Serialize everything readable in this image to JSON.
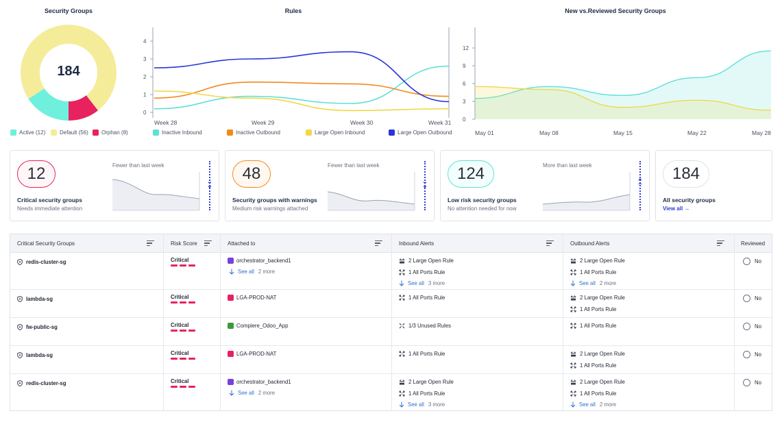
{
  "security_groups_chart": {
    "title": "Security Groups",
    "center_value": "184",
    "legend": [
      {
        "label": "Active (12)",
        "color": "#6ff0dc"
      },
      {
        "label": "Default (56)",
        "color": "#f5ec9a"
      },
      {
        "label": "Orphan (8)",
        "color": "#e8215f"
      }
    ]
  },
  "rules_chart": {
    "title": "Rules"
  },
  "reviewed_chart": {
    "title": "New vs.Reviewed Security Groups"
  },
  "chart_data": [
    {
      "type": "pie",
      "title": "Security Groups",
      "categories": [
        "Active",
        "Default",
        "Orphan"
      ],
      "values": [
        12,
        56,
        8
      ],
      "colors": [
        "#6ff0dc",
        "#f5ec9a",
        "#e8215f"
      ],
      "donut": true,
      "center_label": "184"
    },
    {
      "type": "line",
      "title": "Rules",
      "x": [
        "Week 28",
        "Week 29",
        "Week 30",
        "Week 31"
      ],
      "yticks": [
        0,
        1,
        2,
        3,
        4
      ],
      "ylim": [
        0,
        5
      ],
      "series": [
        {
          "name": "Inactive Inbound",
          "color": "#5fe0d6",
          "values": [
            0.2,
            0.9,
            0.5,
            2.6
          ]
        },
        {
          "name": "Inactive Outbound",
          "color": "#f08a1c",
          "values": [
            0.8,
            1.7,
            1.6,
            0.9
          ]
        },
        {
          "name": "Large Open Inbound",
          "color": "#f1d84a",
          "values": [
            1.2,
            0.8,
            0.1,
            0.2
          ]
        },
        {
          "name": "Large Open Outbound",
          "color": "#2a35d8",
          "values": [
            2.5,
            3.0,
            3.4,
            0.6
          ]
        }
      ]
    },
    {
      "type": "area",
      "title": "New vs.Reviewed Security Groups",
      "x": [
        "May 01",
        "May 08",
        "May 15",
        "May 22",
        "May 28"
      ],
      "yticks": [
        0,
        3,
        6,
        9,
        12
      ],
      "ylim": [
        0,
        15
      ],
      "series": [
        {
          "color": "#5fe0d6",
          "values": [
            3.5,
            5.5,
            4.0,
            7.0,
            11.5
          ]
        },
        {
          "color": "#f1d84a",
          "values": [
            5.5,
            5.0,
            2.0,
            3.2,
            1.5
          ]
        }
      ]
    }
  ],
  "cards": [
    {
      "value": "12",
      "title": "Critical security groups",
      "subtitle": "Needs immediate attention",
      "trend": "Fewer than last week",
      "border": "#e8215f",
      "bg": "#fff6f8",
      "direction": "down"
    },
    {
      "value": "48",
      "title": "Security groups with warnings",
      "subtitle": "Medium risk warnings attached",
      "trend": "Fewer than last week",
      "border": "#f08a1c",
      "bg": "#fff8f0",
      "direction": "down"
    },
    {
      "value": "124",
      "title": "Low risk security groups",
      "subtitle": "No attention needed for now",
      "trend": "More than last week",
      "border": "#5fe0d6",
      "bg": "#f3fffd",
      "direction": "up"
    },
    {
      "value": "184",
      "title": "All security groups",
      "view_all": "View all →",
      "border": "#dfe2e8",
      "bg": "#ffffff"
    }
  ],
  "table": {
    "headers": [
      "Critical Security Groups",
      "Risk Score",
      "Attached to",
      "Inbound Alerts",
      "Outbound Alerts",
      "Reviewed"
    ],
    "rows": [
      {
        "name": "redis-cluster-sg",
        "risk": "Critical",
        "attached": "orchestrator_backend1",
        "attached_color": "#7b3fe0",
        "attached_see_all": "See all",
        "attached_more": "2 more",
        "inbound": [
          "2 Large Open Rule",
          "1 All Ports Rule"
        ],
        "inbound_see_all": "See all",
        "inbound_more": "3 more",
        "outbound": [
          "2 Large Open Rule",
          "1 All Ports Rule"
        ],
        "outbound_see_all": "See all",
        "outbound_more": "2 more",
        "reviewed": "No"
      },
      {
        "name": "lambda-sg",
        "risk": "Critical",
        "attached": "LGA-PROD-NAT",
        "attached_color": "#e8215f",
        "inbound": [
          "1 All Ports Rule"
        ],
        "outbound": [
          "2 Large Open Rule",
          "1 All Ports Rule"
        ],
        "reviewed": "No"
      },
      {
        "name": "fw-public-sg",
        "risk": "Critical",
        "attached": "Compiere_Odoo_App",
        "attached_color": "#3a9a3a",
        "inbound": [
          "1/3 Unused Rules"
        ],
        "outbound": [
          "1 All Ports Rule"
        ],
        "reviewed": "No"
      },
      {
        "name": "lambda-sg",
        "risk": "Critical",
        "attached": "LGA-PROD-NAT",
        "attached_color": "#e8215f",
        "inbound": [
          "1 All Ports Rule"
        ],
        "outbound": [
          "2 Large Open Rule",
          "1 All Ports Rule"
        ],
        "reviewed": "No"
      },
      {
        "name": "redis-cluster-sg",
        "risk": "Critical",
        "attached": "orchestrator_backend1",
        "attached_color": "#7b3fe0",
        "attached_see_all": "See all",
        "attached_more": "2 more",
        "inbound": [
          "2 Large Open Rule",
          "1 All Ports Rule"
        ],
        "inbound_see_all": "See all",
        "inbound_more": "3 more",
        "outbound": [
          "2 Large Open Rule",
          "1 All Ports Rule"
        ],
        "outbound_see_all": "See all",
        "outbound_more": "2 more",
        "reviewed": "No"
      }
    ]
  }
}
